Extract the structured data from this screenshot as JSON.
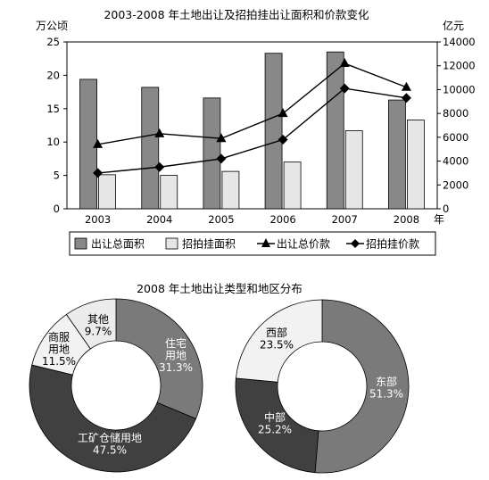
{
  "chart_data": [
    {
      "type": "bar",
      "title": "2003-2008 年土地出让及招拍挂出让面积和价款变化",
      "ylabel": "万公顷",
      "y2label": "亿元",
      "xunit": "年",
      "categories": [
        "2003",
        "2004",
        "2005",
        "2006",
        "2007",
        "2008"
      ],
      "ylim": [
        0,
        25
      ],
      "yticks": [
        0,
        5,
        10,
        15,
        20,
        25
      ],
      "y2lim": [
        0,
        14000
      ],
      "y2ticks": [
        0,
        2000,
        4000,
        6000,
        8000,
        10000,
        12000,
        14000
      ],
      "legend_position": "bottom",
      "series": [
        {
          "name": "出让总面积",
          "kind": "bar",
          "axis": "left",
          "color": "#888888",
          "values": [
            19.4,
            18.2,
            16.6,
            23.3,
            23.5,
            16.3
          ]
        },
        {
          "name": "招拍挂面积",
          "kind": "bar",
          "axis": "left",
          "color": "#e6e6e6",
          "values": [
            5.1,
            5.0,
            5.6,
            7.0,
            11.7,
            13.3
          ]
        },
        {
          "name": "出让总价款",
          "kind": "line",
          "marker": "triangle",
          "axis": "right",
          "values": [
            5400,
            6300,
            5900,
            8000,
            12200,
            10200
          ]
        },
        {
          "name": "招拍挂价款",
          "kind": "line",
          "marker": "diamond",
          "axis": "right",
          "values": [
            3000,
            3500,
            4200,
            5800,
            10100,
            9300
          ]
        }
      ]
    },
    {
      "type": "pie",
      "variant": "donut",
      "title": "2008 年土地出让类型和地区分布",
      "slices": [
        {
          "label": [
            "住宅",
            "用地"
          ],
          "pct": "31.3%",
          "value": 31.3,
          "color": "#7a7a7a",
          "text_color": "#ffffff"
        },
        {
          "label": [
            "工矿仓储用地"
          ],
          "pct": "47.5%",
          "value": 47.5,
          "color": "#404040",
          "text_color": "#ffffff"
        },
        {
          "label": [
            "商服",
            "用地"
          ],
          "pct": "11.5%",
          "value": 11.5,
          "color": "#f2f2f2",
          "text_color": "#000000"
        },
        {
          "label": [
            "其他"
          ],
          "pct": "9.7%",
          "value": 9.7,
          "color": "#ececec",
          "text_color": "#000000"
        }
      ]
    },
    {
      "type": "pie",
      "variant": "donut",
      "title": "",
      "slices": [
        {
          "label": [
            "东部"
          ],
          "pct": "51.3%",
          "value": 51.3,
          "color": "#7a7a7a",
          "text_color": "#ffffff"
        },
        {
          "label": [
            "中部"
          ],
          "pct": "25.2%",
          "value": 25.2,
          "color": "#404040",
          "text_color": "#ffffff"
        },
        {
          "label": [
            "西部"
          ],
          "pct": "23.5%",
          "value": 23.5,
          "color": "#f2f2f2",
          "text_color": "#000000"
        }
      ]
    }
  ]
}
